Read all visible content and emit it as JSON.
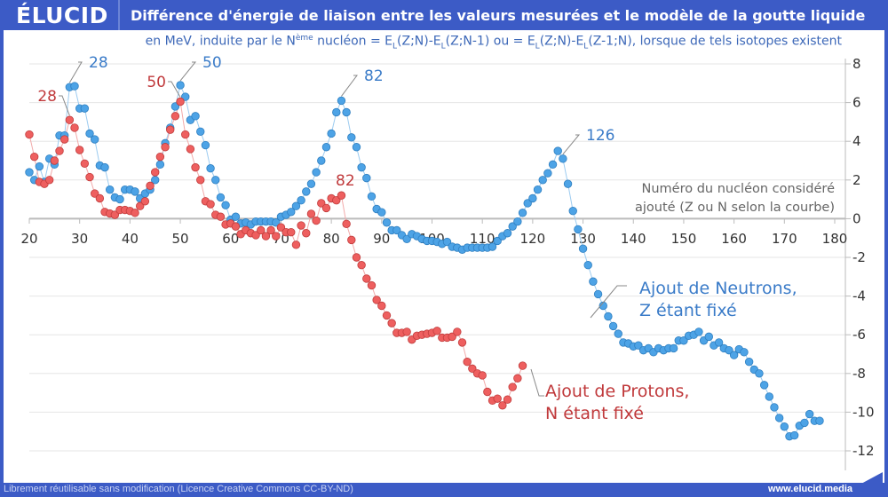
{
  "header": {
    "logo": "ÉLUCID",
    "title": "Différence d'énergie de liaison entre les valeurs mesurées et le modèle de la goutte liquide"
  },
  "subtitle": {
    "p1": "en MeV, induite par le N",
    "sup": "ème",
    "p2": " nucléon = E",
    "s1": "L",
    "p3": "(Z;N)-E",
    "s2": "L",
    "p4": "(Z;N-1) ou = E",
    "s3": "L",
    "p5": "(Z;N)-E",
    "s4": "L",
    "p6": "(Z-1;N), lorsque de tels isotopes existent"
  },
  "footer": {
    "license": "Librement réutilisable sans modification (Licence Creative Commons CC-BY-ND)",
    "site": "www.elucid.media"
  },
  "colors": {
    "brand": "#3c5bc6",
    "neutrons": "#4da3e6",
    "neutrons_text": "#3a7bc8",
    "protons": "#ee5f5f",
    "protons_text": "#c0393b"
  },
  "chart_data": {
    "type": "scatter",
    "xlabel": "Numéro du nucléon considéré ajouté (Z ou N selon la courbe)",
    "xlabel_lines": [
      "Numéro du nucléon considéré",
      "ajouté (Z ou N selon la courbe)"
    ],
    "xlim": [
      20,
      180
    ],
    "ylim": [
      -12,
      8
    ],
    "xticks": [
      20,
      30,
      40,
      50,
      60,
      70,
      80,
      90,
      100,
      110,
      120,
      130,
      140,
      150,
      160,
      170,
      180
    ],
    "yticks": [
      8,
      6,
      4,
      2,
      0,
      -2,
      -4,
      -6,
      -8,
      -10,
      -12
    ],
    "y_axis_side": "right",
    "grid": "horizontal",
    "series": [
      {
        "name": "Ajout de Neutrons, Z étant fixé",
        "label_lines": [
          "Ajout de Neutrons,",
          "Z étant fixé"
        ],
        "color": "#4da3e6",
        "points": [
          [
            20,
            2.4
          ],
          [
            21,
            2.0
          ],
          [
            22,
            2.7
          ],
          [
            23,
            1.9
          ],
          [
            24,
            3.1
          ],
          [
            25,
            2.8
          ],
          [
            26,
            4.3
          ],
          [
            27,
            4.3
          ],
          [
            28,
            6.8
          ],
          [
            29,
            6.85
          ],
          [
            30,
            5.7
          ],
          [
            31,
            5.7
          ],
          [
            32,
            4.4
          ],
          [
            33,
            4.1
          ],
          [
            34,
            2.75
          ],
          [
            35,
            2.65
          ],
          [
            36,
            1.5
          ],
          [
            37,
            1.1
          ],
          [
            38,
            1.0
          ],
          [
            39,
            1.5
          ],
          [
            40,
            1.5
          ],
          [
            41,
            1.4
          ],
          [
            42,
            1.05
          ],
          [
            43,
            1.3
          ],
          [
            44,
            1.5
          ],
          [
            45,
            2.0
          ],
          [
            46,
            2.8
          ],
          [
            47,
            3.9
          ],
          [
            48,
            4.7
          ],
          [
            49,
            5.8
          ],
          [
            50,
            6.9
          ],
          [
            51,
            6.3
          ],
          [
            52,
            5.1
          ],
          [
            53,
            5.3
          ],
          [
            54,
            4.5
          ],
          [
            55,
            3.8
          ],
          [
            56,
            2.6
          ],
          [
            57,
            2.0
          ],
          [
            58,
            1.1
          ],
          [
            59,
            0.7
          ],
          [
            60,
            -0.05
          ],
          [
            61,
            0.1
          ],
          [
            62,
            -0.25
          ],
          [
            63,
            -0.2
          ],
          [
            64,
            -0.3
          ],
          [
            65,
            -0.15
          ],
          [
            66,
            -0.15
          ],
          [
            67,
            -0.15
          ],
          [
            68,
            -0.15
          ],
          [
            69,
            -0.2
          ],
          [
            70,
            0.1
          ],
          [
            71,
            0.2
          ],
          [
            72,
            0.35
          ],
          [
            73,
            0.65
          ],
          [
            74,
            0.95
          ],
          [
            75,
            1.4
          ],
          [
            76,
            1.8
          ],
          [
            77,
            2.4
          ],
          [
            78,
            3.0
          ],
          [
            79,
            3.7
          ],
          [
            80,
            4.4
          ],
          [
            81,
            5.5
          ],
          [
            82,
            6.1
          ],
          [
            83,
            5.5
          ],
          [
            84,
            4.2
          ],
          [
            85,
            3.7
          ],
          [
            86,
            2.65
          ],
          [
            87,
            2.1
          ],
          [
            88,
            1.15
          ],
          [
            89,
            0.5
          ],
          [
            90,
            0.33
          ],
          [
            91,
            -0.2
          ],
          [
            92,
            -0.6
          ],
          [
            93,
            -0.6
          ],
          [
            94,
            -0.85
          ],
          [
            95,
            -1.05
          ],
          [
            96,
            -0.8
          ],
          [
            97,
            -0.9
          ],
          [
            98,
            -1.05
          ],
          [
            99,
            -1.15
          ],
          [
            100,
            -1.15
          ],
          [
            101,
            -1.2
          ],
          [
            102,
            -1.3
          ],
          [
            103,
            -1.2
          ],
          [
            104,
            -1.45
          ],
          [
            105,
            -1.5
          ],
          [
            106,
            -1.6
          ],
          [
            107,
            -1.5
          ],
          [
            108,
            -1.5
          ],
          [
            109,
            -1.5
          ],
          [
            110,
            -1.5
          ],
          [
            111,
            -1.5
          ],
          [
            112,
            -1.45
          ],
          [
            113,
            -1.15
          ],
          [
            114,
            -0.9
          ],
          [
            115,
            -0.75
          ],
          [
            116,
            -0.4
          ],
          [
            117,
            -0.15
          ],
          [
            118,
            0.3
          ],
          [
            119,
            0.8
          ],
          [
            120,
            1.05
          ],
          [
            121,
            1.5
          ],
          [
            122,
            2.0
          ],
          [
            123,
            2.35
          ],
          [
            124,
            2.8
          ],
          [
            125,
            3.5
          ],
          [
            126,
            3.1
          ],
          [
            127,
            1.8
          ],
          [
            128,
            0.4
          ],
          [
            129,
            -0.55
          ],
          [
            130,
            -1.55
          ],
          [
            131,
            -2.4
          ],
          [
            132,
            -3.25
          ],
          [
            133,
            -3.9
          ],
          [
            134,
            -4.5
          ],
          [
            135,
            -5.05
          ],
          [
            136,
            -5.55
          ],
          [
            137,
            -5.95
          ],
          [
            138,
            -6.4
          ],
          [
            139,
            -6.45
          ],
          [
            140,
            -6.6
          ],
          [
            141,
            -6.55
          ],
          [
            142,
            -6.8
          ],
          [
            143,
            -6.7
          ],
          [
            144,
            -6.9
          ],
          [
            145,
            -6.7
          ],
          [
            146,
            -6.8
          ],
          [
            147,
            -6.7
          ],
          [
            148,
            -6.7
          ],
          [
            149,
            -6.3
          ],
          [
            150,
            -6.3
          ],
          [
            151,
            -6.05
          ],
          [
            152,
            -6.0
          ],
          [
            153,
            -5.85
          ],
          [
            154,
            -6.3
          ],
          [
            155,
            -6.1
          ],
          [
            156,
            -6.55
          ],
          [
            157,
            -6.4
          ],
          [
            158,
            -6.7
          ],
          [
            159,
            -6.8
          ],
          [
            160,
            -7.05
          ],
          [
            161,
            -6.75
          ],
          [
            162,
            -6.9
          ],
          [
            163,
            -7.4
          ],
          [
            164,
            -7.8
          ],
          [
            165,
            -8.0
          ],
          [
            166,
            -8.6
          ],
          [
            167,
            -9.2
          ],
          [
            168,
            -9.75
          ],
          [
            169,
            -10.3
          ],
          [
            170,
            -10.75
          ],
          [
            171,
            -11.25
          ],
          [
            172,
            -11.2
          ],
          [
            173,
            -10.7
          ],
          [
            174,
            -10.55
          ],
          [
            175,
            -10.1
          ],
          [
            176,
            -10.45
          ],
          [
            177,
            -10.45
          ]
        ],
        "annotations": [
          {
            "text": "28",
            "x": 28
          },
          {
            "text": "50",
            "x": 50
          },
          {
            "text": "82",
            "x": 82
          },
          {
            "text": "126",
            "x": 126
          }
        ]
      },
      {
        "name": "Ajout de Protons, N étant fixé",
        "label_lines": [
          "Ajout de Protons,",
          "N étant fixé"
        ],
        "color": "#ee5f5f",
        "points": [
          [
            20,
            4.35
          ],
          [
            21,
            3.2
          ],
          [
            22,
            1.9
          ],
          [
            23,
            1.8
          ],
          [
            24,
            2.0
          ],
          [
            25,
            3.0
          ],
          [
            26,
            3.5
          ],
          [
            27,
            4.1
          ],
          [
            28,
            5.1
          ],
          [
            29,
            4.7
          ],
          [
            30,
            3.55
          ],
          [
            31,
            2.85
          ],
          [
            32,
            2.15
          ],
          [
            33,
            1.3
          ],
          [
            34,
            1.05
          ],
          [
            35,
            0.35
          ],
          [
            36,
            0.27
          ],
          [
            37,
            0.2
          ],
          [
            38,
            0.45
          ],
          [
            39,
            0.45
          ],
          [
            40,
            0.4
          ],
          [
            41,
            0.3
          ],
          [
            42,
            0.65
          ],
          [
            43,
            0.9
          ],
          [
            44,
            1.7
          ],
          [
            45,
            2.4
          ],
          [
            46,
            3.2
          ],
          [
            47,
            3.7
          ],
          [
            48,
            4.6
          ],
          [
            49,
            5.3
          ],
          [
            50,
            6.05
          ],
          [
            51,
            4.35
          ],
          [
            52,
            3.6
          ],
          [
            53,
            2.65
          ],
          [
            54,
            2.0
          ],
          [
            55,
            0.9
          ],
          [
            56,
            0.75
          ],
          [
            57,
            0.2
          ],
          [
            58,
            0.1
          ],
          [
            59,
            -0.3
          ],
          [
            60,
            -0.25
          ],
          [
            61,
            -0.4
          ],
          [
            62,
            -0.8
          ],
          [
            63,
            -0.6
          ],
          [
            64,
            -0.75
          ],
          [
            65,
            -0.85
          ],
          [
            66,
            -0.6
          ],
          [
            67,
            -0.9
          ],
          [
            68,
            -0.6
          ],
          [
            69,
            -0.9
          ],
          [
            70,
            -0.45
          ],
          [
            71,
            -0.7
          ],
          [
            72,
            -0.7
          ],
          [
            73,
            -1.35
          ],
          [
            74,
            -0.35
          ],
          [
            75,
            -0.75
          ],
          [
            76,
            0.25
          ],
          [
            77,
            -0.1
          ],
          [
            78,
            0.8
          ],
          [
            79,
            0.55
          ],
          [
            80,
            1.05
          ],
          [
            81,
            0.95
          ],
          [
            82,
            1.2
          ],
          [
            83,
            -0.27
          ],
          [
            84,
            -1.1
          ],
          [
            85,
            -2.0
          ],
          [
            86,
            -2.4
          ],
          [
            87,
            -3.1
          ],
          [
            88,
            -3.45
          ],
          [
            89,
            -4.2
          ],
          [
            90,
            -4.5
          ],
          [
            91,
            -5.0
          ],
          [
            92,
            -5.4
          ],
          [
            93,
            -5.9
          ],
          [
            94,
            -5.9
          ],
          [
            95,
            -5.85
          ],
          [
            96,
            -6.25
          ],
          [
            97,
            -6.05
          ],
          [
            98,
            -6.0
          ],
          [
            99,
            -5.95
          ],
          [
            100,
            -5.9
          ],
          [
            101,
            -5.8
          ],
          [
            102,
            -6.15
          ],
          [
            103,
            -6.15
          ],
          [
            104,
            -6.1
          ],
          [
            105,
            -5.85
          ],
          [
            106,
            -6.4
          ],
          [
            107,
            -7.4
          ],
          [
            108,
            -7.75
          ],
          [
            109,
            -8.0
          ],
          [
            110,
            -8.1
          ],
          [
            111,
            -8.95
          ],
          [
            112,
            -9.4
          ],
          [
            113,
            -9.3
          ],
          [
            114,
            -9.65
          ],
          [
            115,
            -9.35
          ],
          [
            116,
            -8.7
          ],
          [
            117,
            -8.25
          ],
          [
            118,
            -7.6
          ]
        ],
        "annotations": [
          {
            "text": "28",
            "x": 28
          },
          {
            "text": "50",
            "x": 50
          },
          {
            "text": "82",
            "x": 82
          }
        ]
      }
    ]
  }
}
